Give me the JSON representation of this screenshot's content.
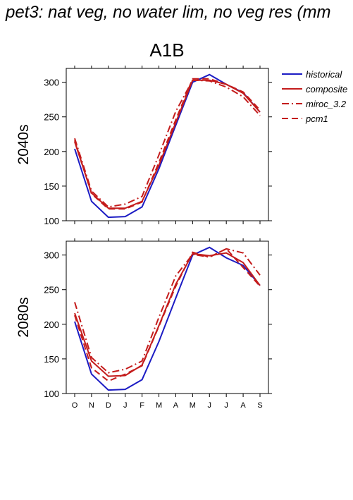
{
  "title": "pet3: nat veg, no water lim, no veg res (mm",
  "scenario": "A1B",
  "colors": {
    "historical": "#1c1cc4",
    "models": "#c41c1c"
  },
  "legend": [
    "historical",
    "composite",
    "miroc_3.2",
    "pcm1"
  ],
  "chart_data": [
    {
      "type": "line",
      "panel_label": "2040s",
      "categories": [
        "O",
        "N",
        "D",
        "J",
        "F",
        "M",
        "A",
        "M",
        "J",
        "J",
        "A",
        "S"
      ],
      "ylim": [
        100,
        320
      ],
      "yticks": [
        100,
        150,
        200,
        250,
        300
      ],
      "grid": false,
      "legend_position": "right",
      "series": [
        {
          "name": "historical",
          "style": "solid",
          "color": "#1c1cc4",
          "values": [
            204,
            128,
            105,
            106,
            120,
            175,
            238,
            300,
            311,
            297,
            285,
            257
          ]
        },
        {
          "name": "composite",
          "style": "solid",
          "color": "#c41c1c",
          "values": [
            214,
            140,
            118,
            118,
            128,
            180,
            242,
            303,
            303,
            297,
            284,
            257
          ]
        },
        {
          "name": "miroc_3.2",
          "style": "dashdot",
          "color": "#c41c1c",
          "values": [
            219,
            143,
            120,
            124,
            135,
            195,
            258,
            303,
            302,
            293,
            279,
            252
          ]
        },
        {
          "name": "pcm1",
          "style": "dashed",
          "color": "#c41c1c",
          "values": [
            216,
            139,
            117,
            117,
            127,
            184,
            246,
            305,
            305,
            297,
            286,
            260
          ]
        }
      ]
    },
    {
      "type": "line",
      "panel_label": "2080s",
      "categories": [
        "O",
        "N",
        "D",
        "J",
        "F",
        "M",
        "A",
        "M",
        "J",
        "J",
        "A",
        "S"
      ],
      "ylim": [
        100,
        320
      ],
      "yticks": [
        100,
        150,
        200,
        250,
        300
      ],
      "grid": false,
      "legend_position": "none",
      "series": [
        {
          "name": "historical",
          "style": "solid",
          "color": "#1c1cc4",
          "values": [
            204,
            128,
            105,
            106,
            120,
            175,
            238,
            300,
            311,
            296,
            285,
            256
          ]
        },
        {
          "name": "composite",
          "style": "solid",
          "color": "#c41c1c",
          "values": [
            216,
            147,
            125,
            126,
            141,
            198,
            258,
            302,
            299,
            303,
            289,
            256
          ]
        },
        {
          "name": "miroc_3.2",
          "style": "dashdot",
          "color": "#c41c1c",
          "values": [
            232,
            152,
            130,
            135,
            147,
            210,
            270,
            301,
            297,
            309,
            303,
            271
          ]
        },
        {
          "name": "pcm1",
          "style": "dashed",
          "color": "#c41c1c",
          "values": [
            213,
            137,
            118,
            128,
            140,
            197,
            255,
            304,
            297,
            309,
            282,
            255
          ]
        }
      ]
    }
  ]
}
